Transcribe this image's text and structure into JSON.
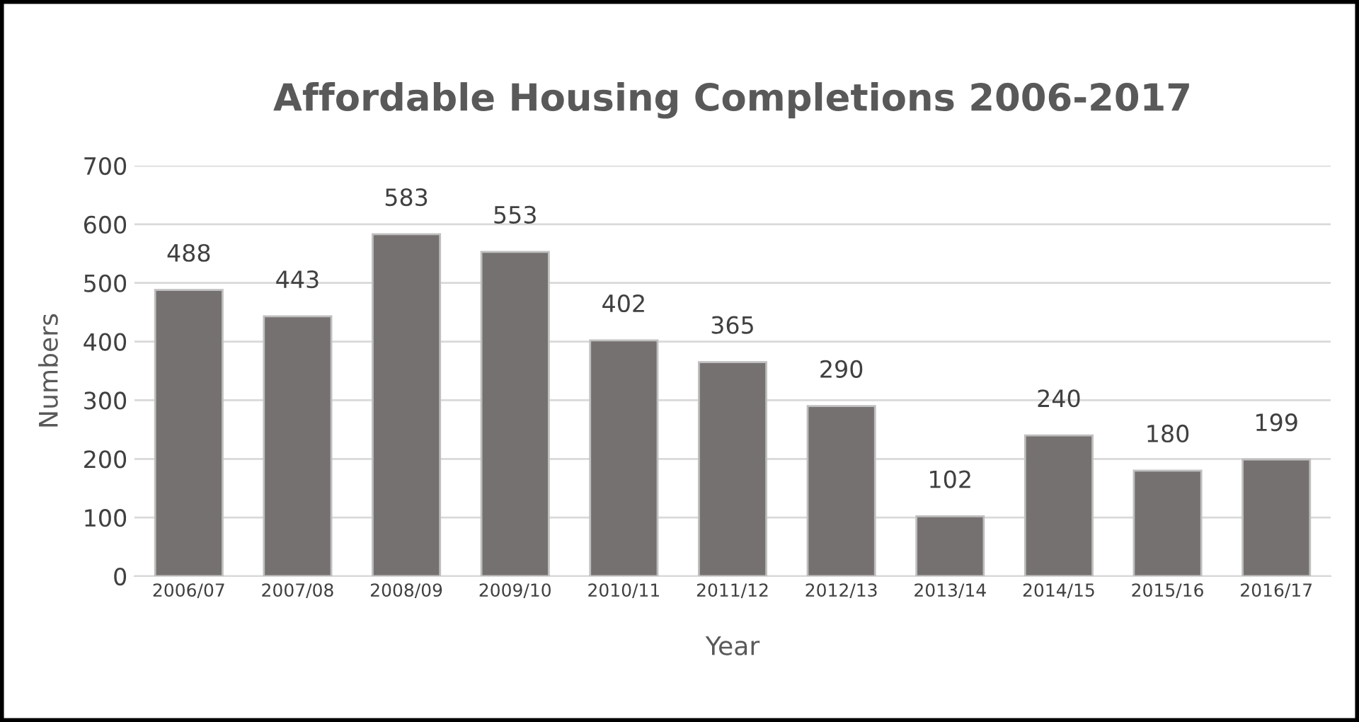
{
  "chart_data": {
    "type": "bar",
    "title": "Affordable Housing Completions 2006-2017",
    "xlabel": "Year",
    "ylabel": "Numbers",
    "categories": [
      "2006/07",
      "2007/08",
      "2008/09",
      "2009/10",
      "2010/11",
      "2011/12",
      "2012/13",
      "2013/14",
      "2014/15",
      "2015/16",
      "2016/17"
    ],
    "values": [
      488,
      443,
      583,
      553,
      402,
      365,
      290,
      102,
      240,
      180,
      199
    ],
    "color": "#767171",
    "ylim": [
      0,
      700
    ],
    "yticks": [
      0,
      100,
      200,
      300,
      400,
      500,
      600,
      700
    ],
    "grid": "y",
    "data_labels": true
  }
}
